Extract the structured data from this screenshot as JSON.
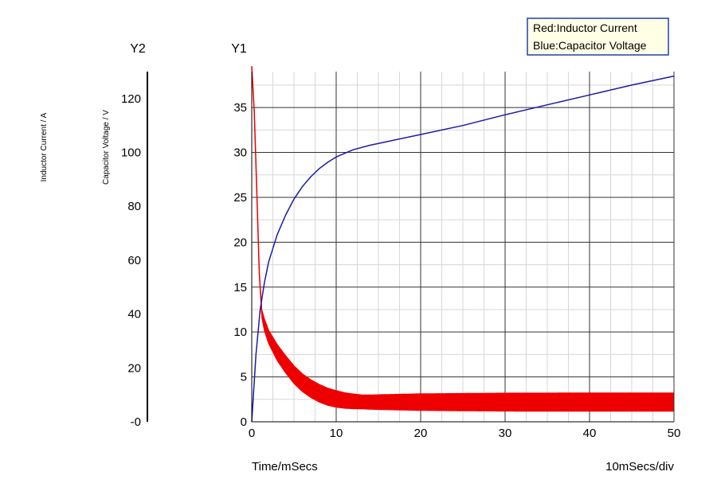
{
  "chart_data": {
    "type": "line",
    "legend": {
      "placement": "top-right",
      "entries": [
        "Red:Inductor Current",
        "Blue:Capacitor Voltage"
      ]
    },
    "axes": {
      "y2": {
        "header": "Y2",
        "label": "Inductor Current / A",
        "range": [
          0,
          130
        ],
        "ticks": [
          0,
          20,
          40,
          60,
          80,
          100,
          120
        ],
        "tick_labels": [
          "-0",
          "20",
          "40",
          "60",
          "80",
          "100",
          "120"
        ]
      },
      "y1": {
        "header": "Y1",
        "label": "Capacitor Voltage / V",
        "range": [
          0,
          39
        ],
        "ticks": [
          0,
          5,
          10,
          15,
          20,
          25,
          30,
          35
        ],
        "tick_labels": [
          "0",
          "5",
          "10",
          "15",
          "20",
          "25",
          "30",
          "35"
        ]
      },
      "x": {
        "label": "Time/mSecs",
        "scale_note": "10mSecs/div",
        "range": [
          0,
          50
        ],
        "ticks": [
          0,
          10,
          20,
          30,
          40,
          50
        ],
        "tick_labels": [
          "0",
          "10",
          "20",
          "30",
          "40",
          "50"
        ]
      }
    },
    "grid": true,
    "series": [
      {
        "name": "Inductor Current",
        "color": "#ee0000",
        "axis": "y2",
        "x": [
          0,
          0.3,
          0.6,
          0.9,
          1.2,
          1.5,
          2,
          3,
          4,
          5,
          6,
          7,
          8,
          9,
          10,
          11,
          12,
          13,
          14,
          15,
          20,
          30,
          40,
          50
        ],
        "y": [
          132,
          115,
          85,
          55,
          40,
          36,
          31.5,
          25.8,
          21.4,
          17.5,
          14.5,
          12.3,
          10.6,
          9.3,
          8.5,
          7.9,
          7.6,
          7.4,
          7.3,
          7.3,
          7.3,
          7.3,
          7.3,
          7.3
        ],
        "ripple": [
          0,
          0,
          0,
          0,
          3,
          4.5,
          5,
          6,
          6.4,
          6.6,
          6.6,
          6.6,
          6.6,
          6.4,
          6.2,
          5.8,
          5.5,
          5.2,
          5.3,
          5.5,
          6.2,
          6.7,
          6.8,
          6.8
        ]
      },
      {
        "name": "Capacitor Voltage",
        "color": "#1a1aa6",
        "axis": "y1",
        "x": [
          0,
          0.2,
          0.5,
          1,
          1.5,
          2,
          3,
          4,
          5,
          6,
          7,
          8,
          9,
          10,
          11,
          12,
          14,
          16,
          20,
          25,
          30,
          35,
          40,
          45,
          50
        ],
        "y": [
          0,
          3,
          7.5,
          12.5,
          15.5,
          17.8,
          20.8,
          23,
          24.8,
          26.2,
          27.3,
          28.2,
          28.9,
          29.5,
          29.9,
          30.3,
          30.8,
          31.2,
          32.0,
          33.0,
          34.2,
          35.3,
          36.4,
          37.5,
          38.5
        ]
      }
    ]
  }
}
